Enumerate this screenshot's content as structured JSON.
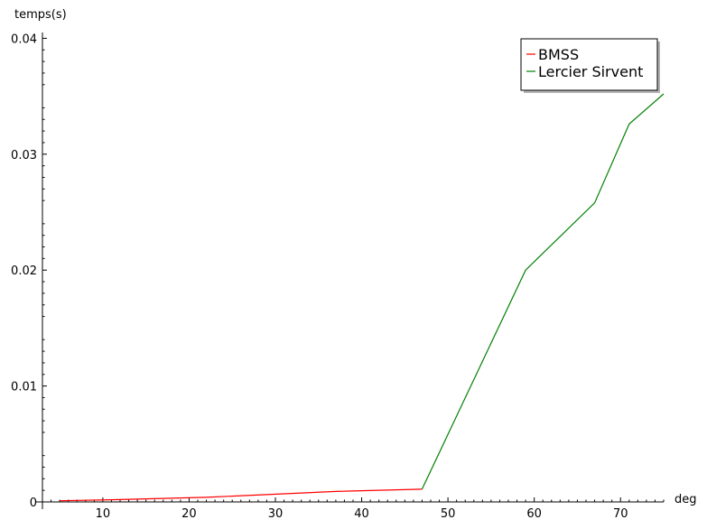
{
  "chart_data": {
    "type": "line",
    "xlabel": "deg",
    "ylabel": "temps(s)",
    "xlim": [
      3,
      75
    ],
    "ylim": [
      0,
      0.0405
    ],
    "x_ticks": [
      10,
      20,
      30,
      40,
      50,
      60,
      70
    ],
    "x_tick_labels": [
      "10",
      "20",
      "30",
      "40",
      "50",
      "60",
      "70"
    ],
    "y_ticks": [
      0,
      0.01,
      0.02,
      0.03,
      0.04
    ],
    "y_tick_labels": [
      "0",
      "0.01",
      "0.02",
      "0.03",
      "0.04"
    ],
    "grid": false,
    "legend_position": "top-right",
    "series": [
      {
        "name": "BMSS",
        "color": "#ff0000",
        "x": [
          5,
          12,
          22,
          31,
          37,
          47
        ],
        "y": [
          0.0001,
          0.0002,
          0.0004,
          0.0007,
          0.0009,
          0.0011
        ]
      },
      {
        "name": "Lercier Sirvent",
        "color": "#008000",
        "x": [
          47,
          59,
          67,
          71,
          75
        ],
        "y": [
          0.0011,
          0.02,
          0.0258,
          0.0326,
          0.0352
        ]
      }
    ]
  }
}
